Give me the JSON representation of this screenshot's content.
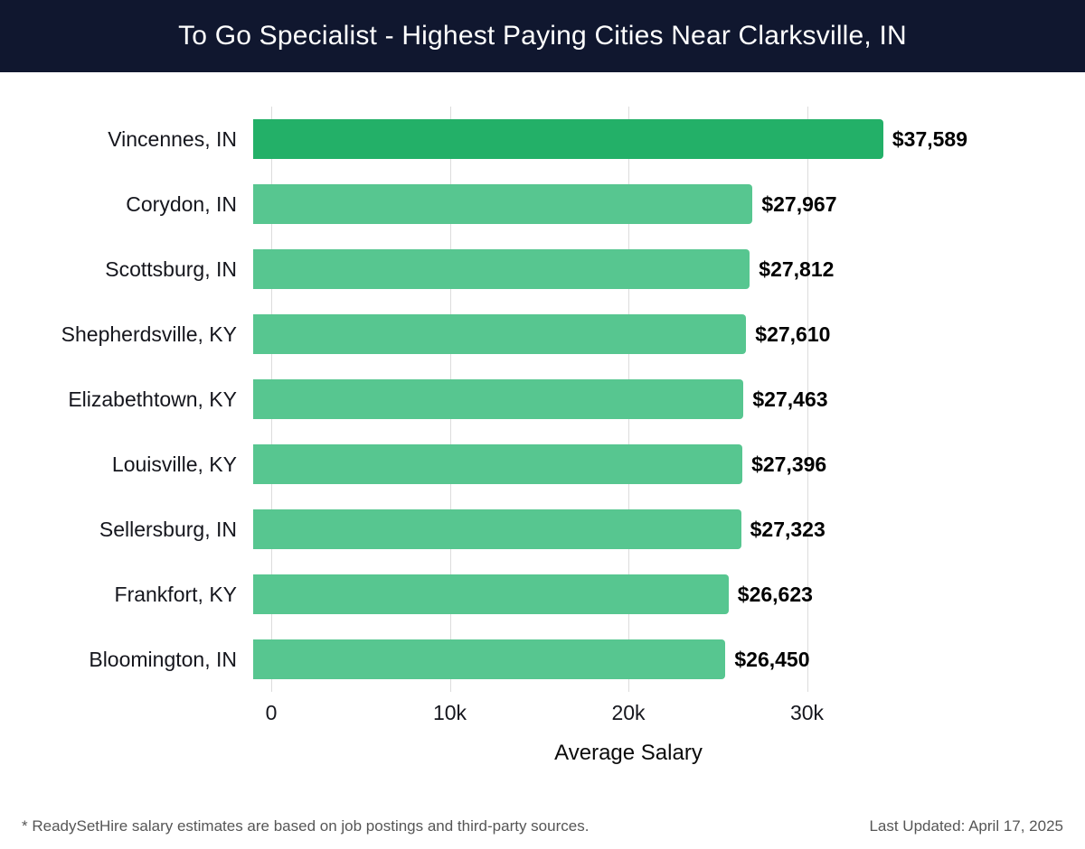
{
  "header": {
    "title": "To Go Specialist - Highest Paying Cities Near Clarksville, IN",
    "bg_color": "#10172f"
  },
  "chart_data": {
    "type": "bar",
    "orientation": "horizontal",
    "title": "To Go Specialist - Highest Paying Cities Near Clarksville, IN",
    "categories": [
      "Vincennes, IN",
      "Corydon, IN",
      "Scottsburg, IN",
      "Shepherdsville, KY",
      "Elizabethtown, KY",
      "Louisville, KY",
      "Sellersburg, IN",
      "Frankfort, KY",
      "Bloomington, IN"
    ],
    "values": [
      37589,
      27967,
      27812,
      27610,
      27463,
      27396,
      27323,
      26623,
      26450
    ],
    "value_labels": [
      "$37,589",
      "$27,967",
      "$27,812",
      "$27,610",
      "$27,463",
      "$27,396",
      "$27,323",
      "$26,623",
      "$26,450"
    ],
    "xlabel": "Average Salary",
    "x_ticks": [
      "0",
      "10k",
      "20k",
      "30k"
    ],
    "x_tick_values": [
      0,
      10000,
      20000,
      30000
    ],
    "xlim": [
      0,
      40000
    ],
    "grid": true,
    "legend": "none",
    "bar_color": "#57c690",
    "highlight_color": "#23b068",
    "highlight_index": 0
  },
  "footer": {
    "note": "* ReadySetHire salary estimates are based on job postings and third-party sources.",
    "updated": "Last Updated: April 17, 2025"
  }
}
